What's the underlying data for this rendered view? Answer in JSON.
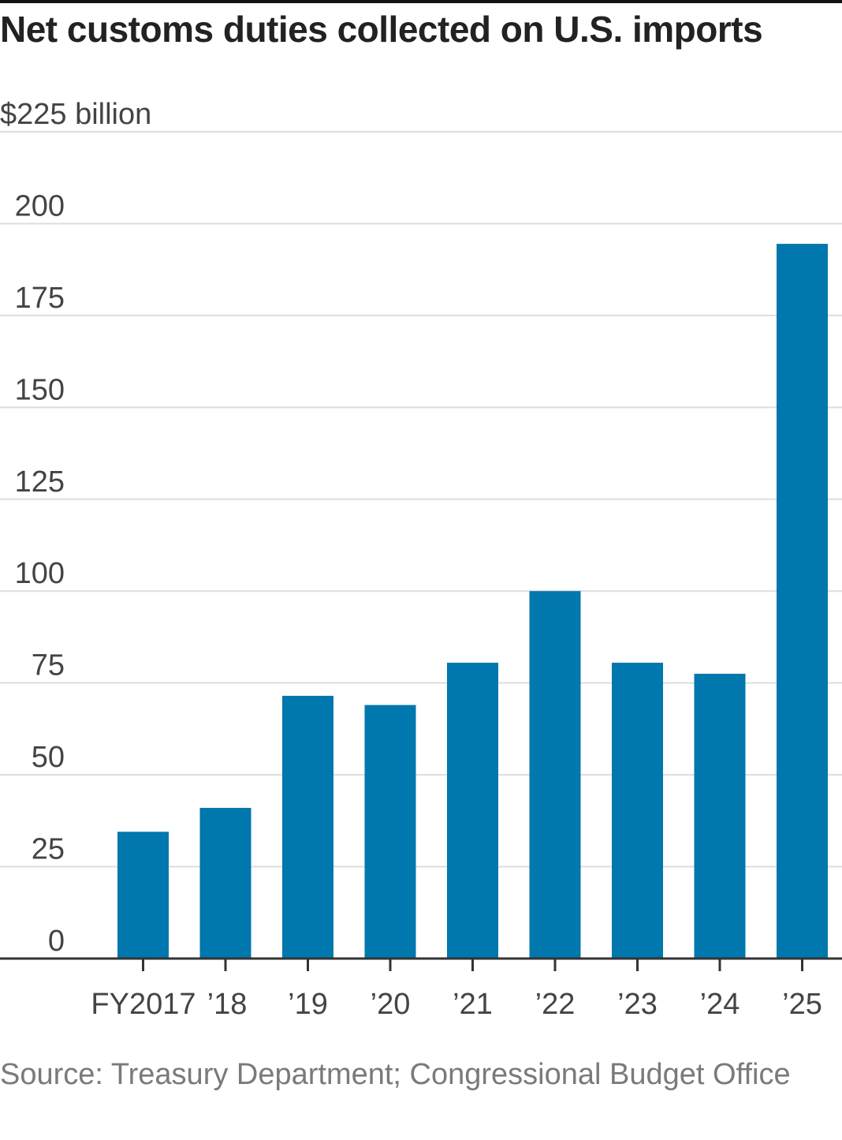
{
  "title": "Net customs duties collected on U.S. imports",
  "source": "Source: Treasury Department; Congressional Budget Office",
  "chart_data": {
    "type": "bar",
    "title": "Net customs duties collected on U.S. imports",
    "ylabel": "",
    "xlabel": "",
    "units_label": "$225 billion",
    "categories": [
      "FY2017",
      "’18",
      "’19",
      "’20",
      "’21",
      "’22",
      "’23",
      "’24",
      "’25"
    ],
    "values": [
      34.5,
      41,
      71.5,
      69,
      80.5,
      100,
      80.5,
      77.5,
      194.5
    ],
    "ylim": [
      0,
      225
    ],
    "yticks": [
      0,
      25,
      50,
      75,
      100,
      125,
      150,
      175,
      200,
      225
    ],
    "ytick_labels": [
      "0",
      "25",
      "50",
      "75",
      "100",
      "125",
      "150",
      "175",
      "200",
      "$225 billion"
    ],
    "grid": true,
    "legend": "none",
    "bar_color": "#0077ad",
    "grid_color": "#dddddd",
    "axis_color": "#333333"
  }
}
